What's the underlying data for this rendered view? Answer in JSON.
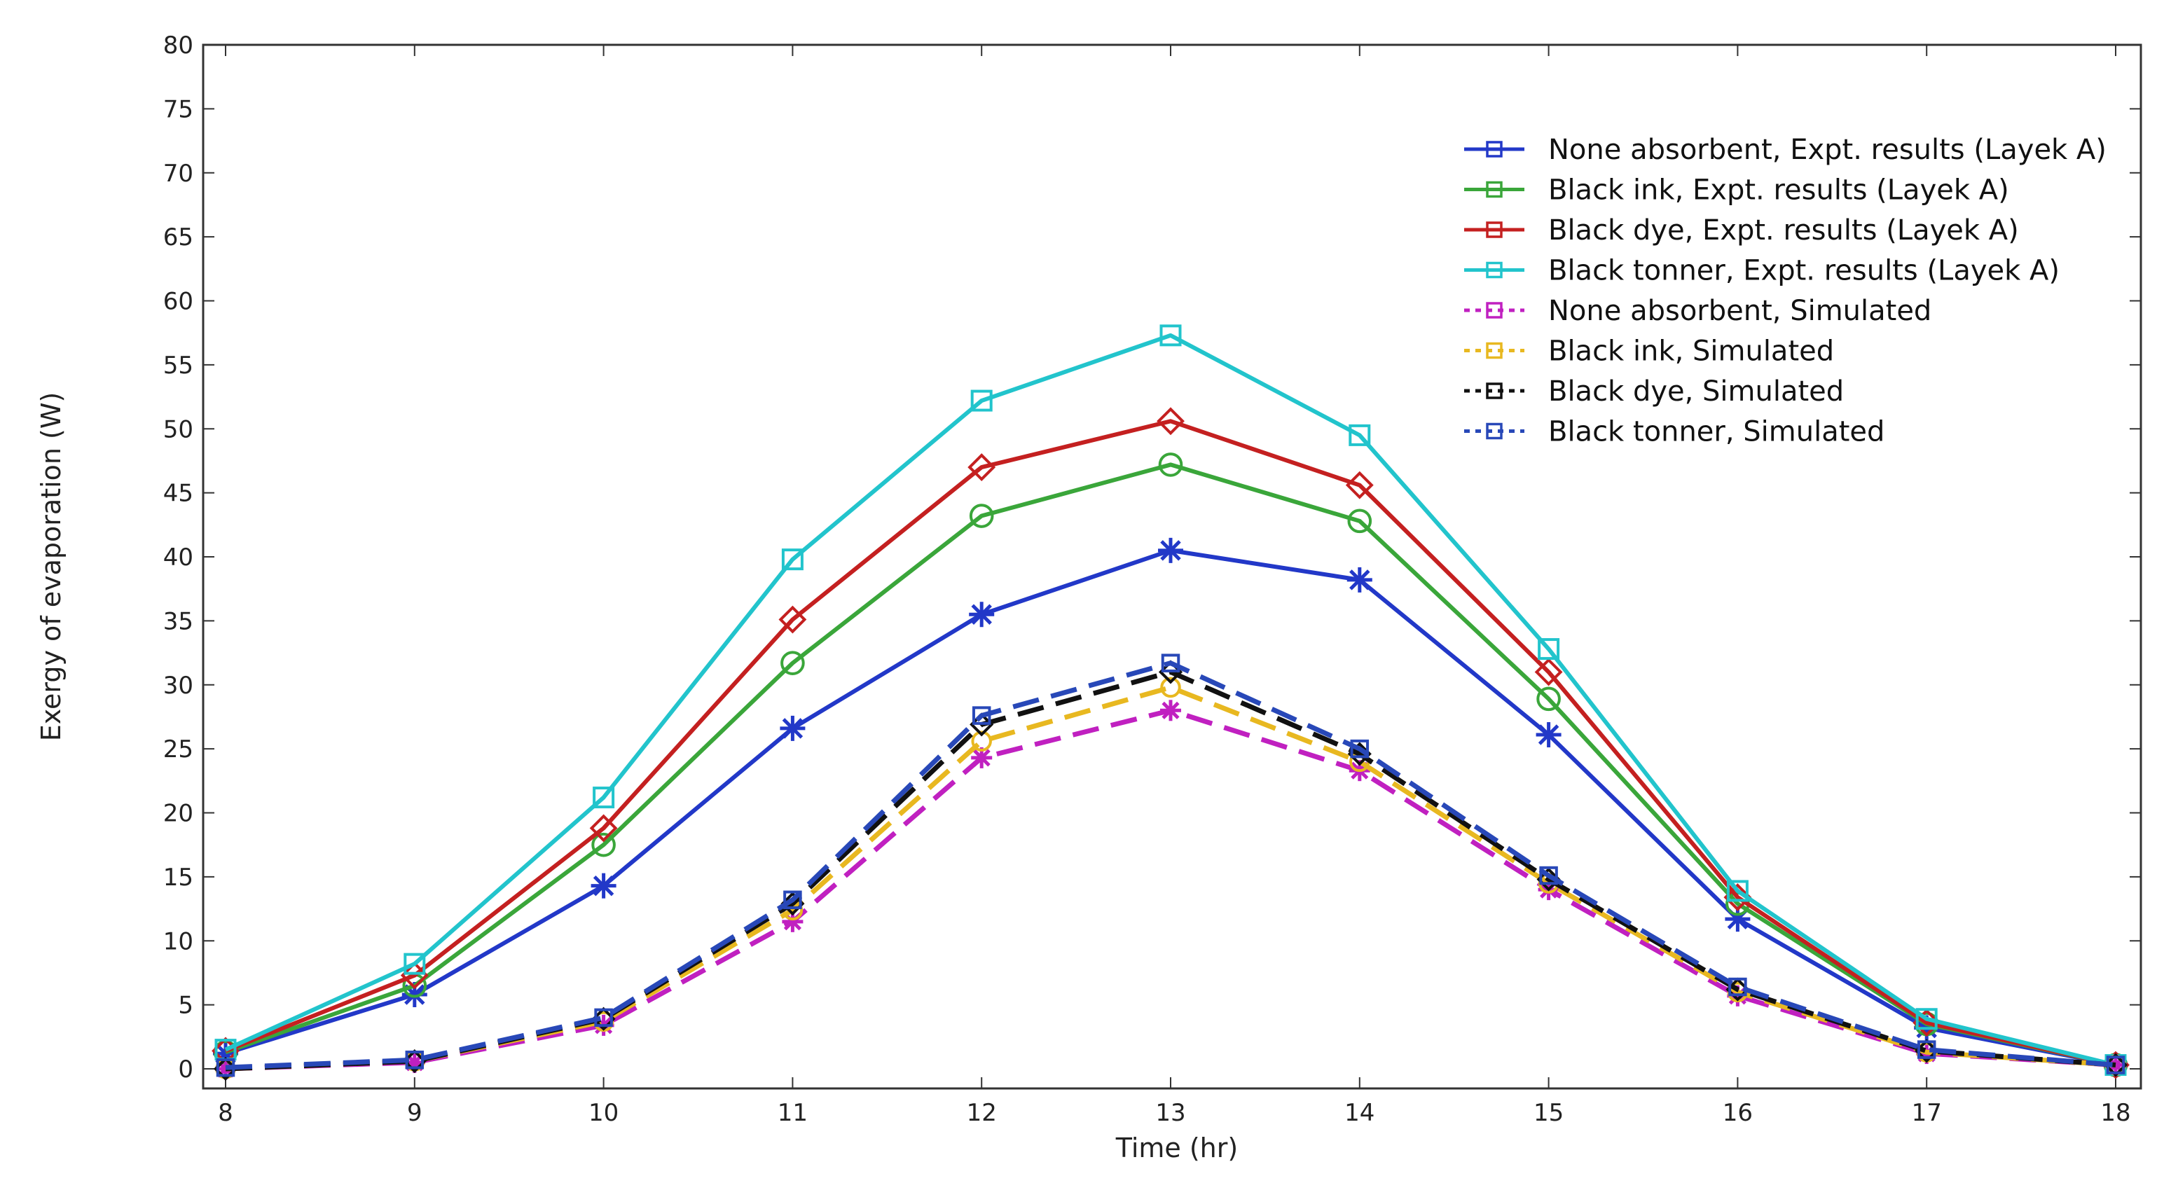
{
  "chart_data": {
    "type": "line",
    "title": "",
    "xlabel": "Time (hr)",
    "ylabel": "Exergy of evaporation (W)",
    "xlim": [
      8,
      18
    ],
    "ylim": [
      0,
      80
    ],
    "x": [
      8,
      9,
      10,
      11,
      12,
      13,
      14,
      15,
      16,
      17,
      18
    ],
    "x_ticks": [
      "8",
      "9",
      "10",
      "11",
      "12",
      "13",
      "14",
      "15",
      "16",
      "17",
      "18"
    ],
    "y_ticks": [
      "0",
      "5",
      "10",
      "15",
      "20",
      "25",
      "30",
      "35",
      "40",
      "45",
      "50",
      "55",
      "60",
      "65",
      "70",
      "75",
      "80"
    ],
    "grid": false,
    "legend_position": "top-right",
    "series": [
      {
        "name": "None absorbent, Expt. results (Layek A)",
        "color": "#2238c8",
        "style": "solid",
        "marker": "asterisk",
        "values": [
          1.2,
          5.8,
          14.3,
          26.6,
          35.5,
          40.5,
          38.2,
          26.1,
          11.7,
          3.2,
          0.3
        ]
      },
      {
        "name": "Black ink, Expt. results (Layek A)",
        "color": "#3aa63a",
        "style": "solid",
        "marker": "circle",
        "values": [
          1.3,
          6.5,
          17.5,
          31.7,
          43.2,
          47.2,
          42.8,
          28.9,
          12.9,
          3.5,
          0.3
        ]
      },
      {
        "name": "Black dye, Expt. results (Layek A)",
        "color": "#c42020",
        "style": "solid",
        "marker": "diamond",
        "values": [
          1.4,
          7.3,
          18.8,
          35.1,
          47.0,
          50.6,
          45.6,
          31.0,
          13.4,
          3.6,
          0.3
        ]
      },
      {
        "name": "Black tonner, Expt. results (Layek A)",
        "color": "#22c4cc",
        "style": "solid",
        "marker": "square",
        "values": [
          1.5,
          8.2,
          21.2,
          39.8,
          52.2,
          57.3,
          49.5,
          32.8,
          13.9,
          3.9,
          0.3
        ]
      },
      {
        "name": "None absorbent, Simulated",
        "color": "#c020c0",
        "style": "dashed",
        "marker": "asterisk",
        "values": [
          0.0,
          0.5,
          3.4,
          11.5,
          24.3,
          28.0,
          23.3,
          14.0,
          5.7,
          1.2,
          0.3
        ]
      },
      {
        "name": "Black ink, Simulated",
        "color": "#e8b820",
        "style": "dashed",
        "marker": "circle",
        "values": [
          0.0,
          0.6,
          3.7,
          12.4,
          25.6,
          29.8,
          24.0,
          14.5,
          6.0,
          1.3,
          0.3
        ]
      },
      {
        "name": "Black dye, Simulated",
        "color": "#111111",
        "style": "dashed",
        "marker": "diamond",
        "values": [
          0.0,
          0.6,
          3.9,
          12.9,
          26.9,
          31.0,
          24.6,
          14.8,
          6.2,
          1.4,
          0.3
        ]
      },
      {
        "name": "Black tonner, Simulated",
        "color": "#2848b8",
        "style": "dashed",
        "marker": "square",
        "values": [
          0.1,
          0.7,
          4.0,
          13.2,
          27.6,
          31.7,
          25.0,
          15.1,
          6.4,
          1.5,
          0.3
        ]
      }
    ]
  }
}
